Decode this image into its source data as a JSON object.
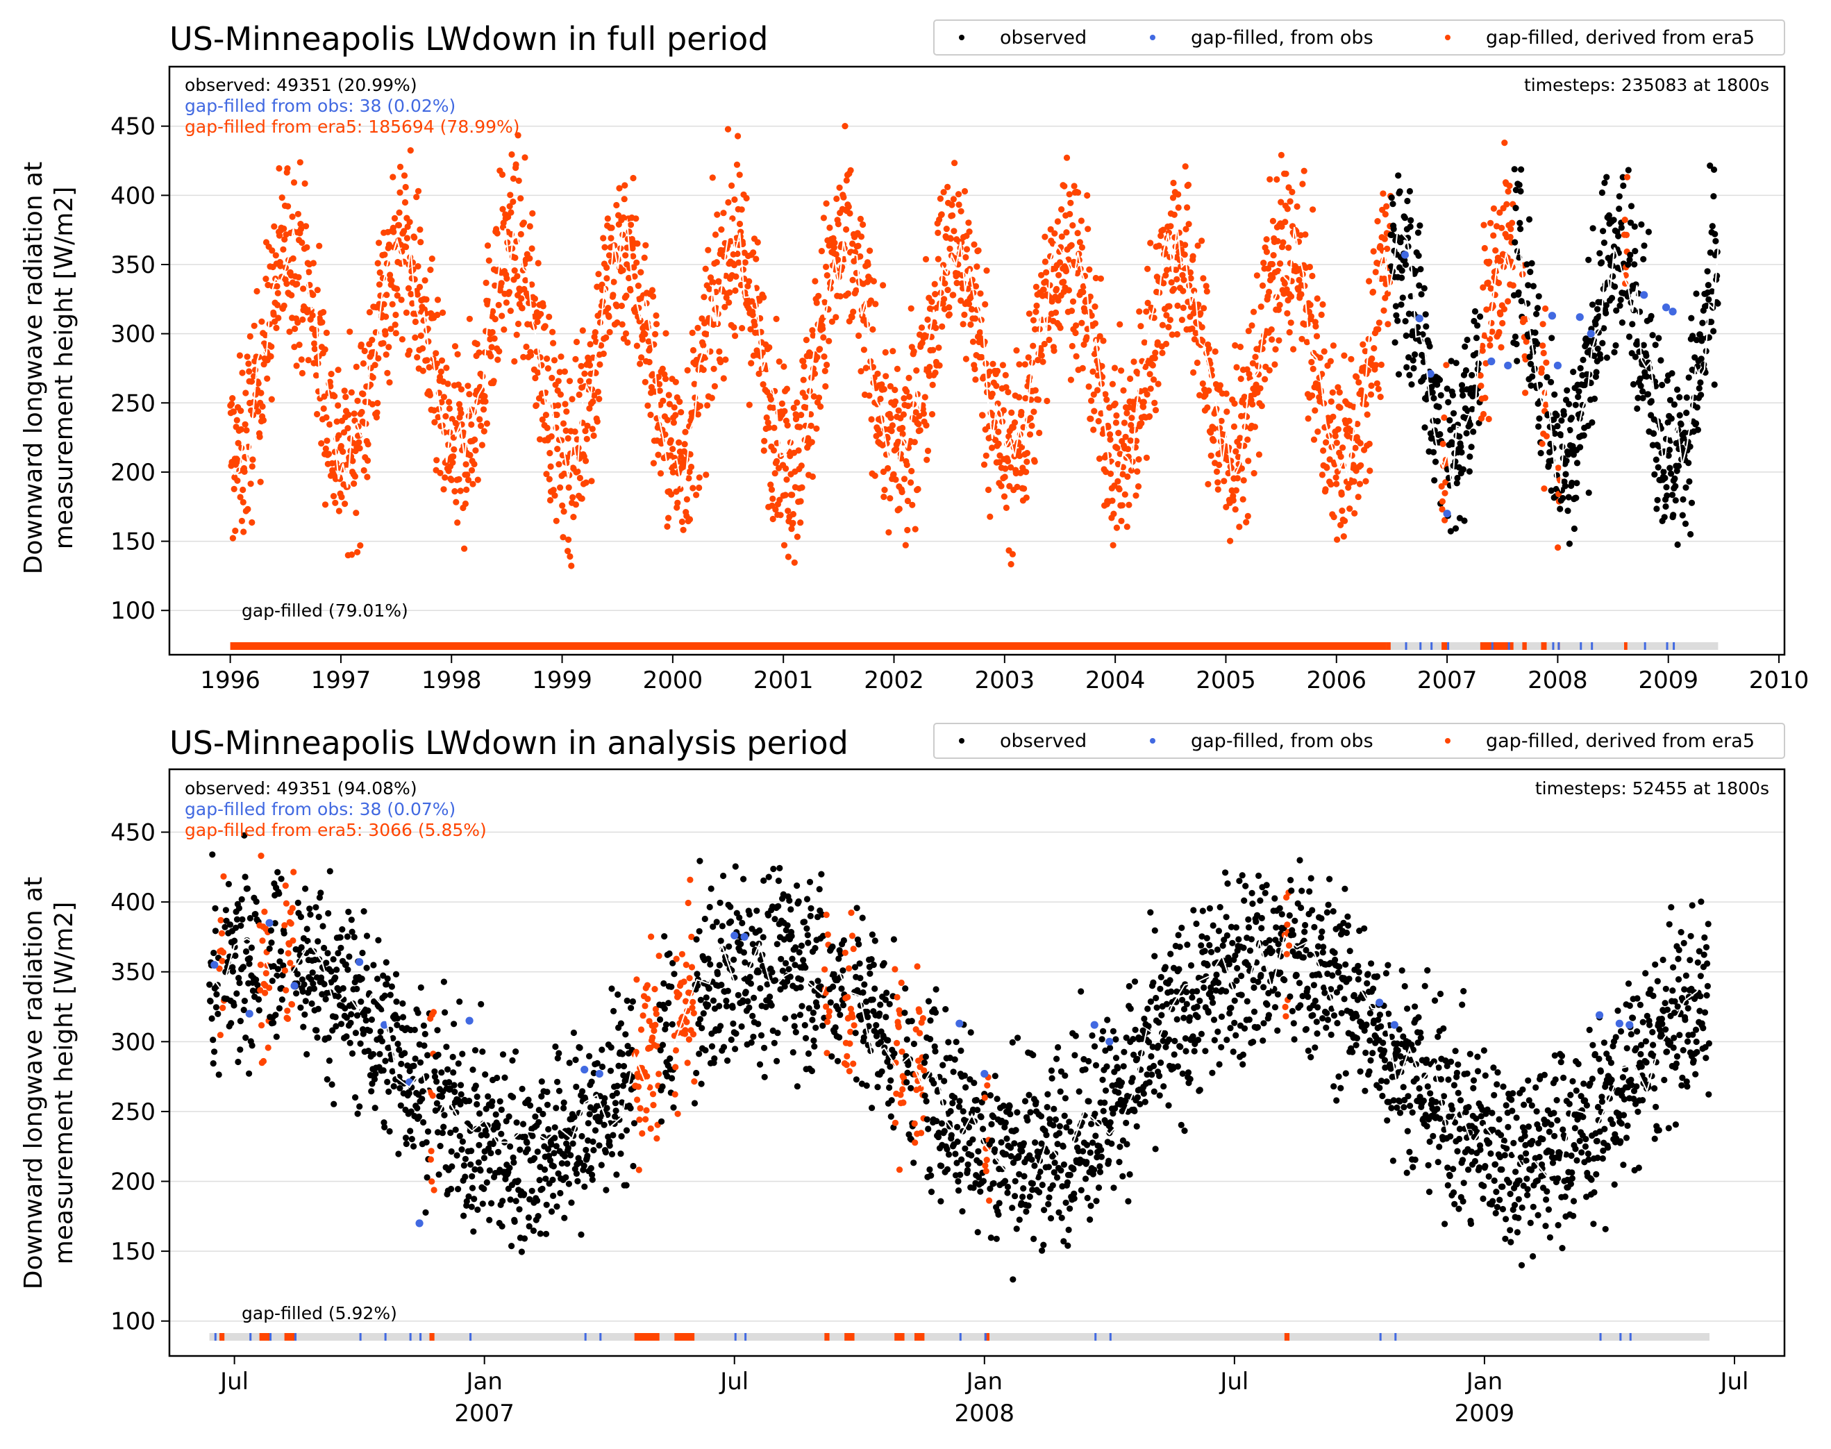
{
  "chart_data": [
    {
      "type": "scatter",
      "title": "US-Minneapolis LWdown in full period",
      "ylabel_line1": "Downward longwave radiation at",
      "ylabel_line2": "measurement height [W/m2]",
      "ylim": [
        68,
        493
      ],
      "xlim": [
        1995.45,
        2010.05
      ],
      "yticks": [
        100,
        150,
        200,
        250,
        300,
        350,
        400,
        450
      ],
      "xticks": [
        1996,
        1997,
        1998,
        1999,
        2000,
        2001,
        2002,
        2003,
        2004,
        2005,
        2006,
        2007,
        2008,
        2009,
        2010
      ],
      "xtick_labels": [
        "1996",
        "1997",
        "1998",
        "1999",
        "2000",
        "2001",
        "2002",
        "2003",
        "2004",
        "2005",
        "2006",
        "2007",
        "2008",
        "2009",
        "2010"
      ],
      "grid": "horizontal",
      "legend_placement": "top-right, above axes",
      "legend": [
        "observed",
        "gap-filled, from obs",
        "gap-filled, derived from era5"
      ],
      "stats": {
        "observed": "observed: 49351 (20.99%)",
        "from_obs": "gap-filled from obs: 38 (0.02%)",
        "from_era5": "gap-filled from era5: 185694 (78.99%)",
        "timesteps": "timesteps: 235083 at 1800s",
        "gap_label": "gap-filled (79.01%)"
      },
      "colors": {
        "observed": "#000000",
        "from_obs": "#4169e1",
        "era5": "#ff4500",
        "mean": "#ffffff",
        "gapbar_bg": "#dcdcdc"
      },
      "x_start": 1996.0,
      "x_end": 2009.45,
      "obs_start": 2006.45,
      "annual_mean": 285,
      "seasonal_amplitude": 75,
      "peak_time": 0.55,
      "era5_bands": [
        [
          2006.45,
          2006.49
        ],
        [
          2006.95,
          2007.0
        ],
        [
          2007.3,
          2007.6
        ],
        [
          2007.68,
          2007.72
        ],
        [
          2007.85,
          2007.9
        ],
        [
          2008.0,
          2008.02
        ],
        [
          2008.6,
          2008.63
        ]
      ],
      "obs_fill_points": [
        [
          2006.62,
          357
        ],
        [
          2006.75,
          311
        ],
        [
          2006.85,
          271
        ],
        [
          2007.0,
          170
        ],
        [
          2007.4,
          280
        ],
        [
          2007.55,
          277
        ],
        [
          2007.95,
          313
        ],
        [
          2008.0,
          277
        ],
        [
          2008.2,
          312
        ],
        [
          2008.3,
          300
        ],
        [
          2008.78,
          328
        ],
        [
          2008.98,
          319
        ],
        [
          2009.04,
          316
        ]
      ]
    },
    {
      "type": "scatter",
      "title": "US-Minneapolis LWdown in analysis period",
      "ylabel_line1": "Downward longwave radiation at",
      "ylabel_line2": "measurement height [W/m2]",
      "ylim": [
        75,
        495
      ],
      "xlim": [
        2006.37,
        2009.6
      ],
      "yticks": [
        100,
        150,
        200,
        250,
        300,
        350,
        400,
        450
      ],
      "xticks": [
        2006.5,
        2007.0,
        2007.5,
        2008.0,
        2008.5,
        2009.0,
        2009.5
      ],
      "xtick_labels": [
        "Jul",
        "Jan",
        "Jul",
        "Jan",
        "Jul",
        "Jan",
        "Jul"
      ],
      "xtick_sublabels": [
        "",
        "2007",
        "",
        "2008",
        "",
        "2009",
        ""
      ],
      "grid": "horizontal",
      "legend_placement": "top-right, above axes",
      "legend": [
        "observed",
        "gap-filled, from obs",
        "gap-filled, derived from era5"
      ],
      "stats": {
        "observed": "observed: 49351 (94.08%)",
        "from_obs": "gap-filled from obs: 38 (0.07%)",
        "from_era5": "gap-filled from era5: 3066 (5.85%)",
        "timesteps": "timesteps: 52455 at 1800s",
        "gap_label": "gap-filled (5.92%)"
      },
      "colors": {
        "observed": "#000000",
        "from_obs": "#4169e1",
        "era5": "#ff4500",
        "mean": "#ffffff",
        "gapbar_bg": "#dcdcdc"
      },
      "x_start": 2006.45,
      "x_end": 2009.45,
      "obs_start": 2006.45,
      "annual_mean": 290,
      "seasonal_amplitude": 70,
      "peak_time": 0.58,
      "era5_bands": [
        [
          2006.47,
          2006.48
        ],
        [
          2006.55,
          2006.57
        ],
        [
          2006.6,
          2006.62
        ],
        [
          2006.89,
          2006.9
        ],
        [
          2007.3,
          2007.35
        ],
        [
          2007.38,
          2007.42
        ],
        [
          2007.68,
          2007.69
        ],
        [
          2007.72,
          2007.74
        ],
        [
          2007.82,
          2007.84
        ],
        [
          2007.86,
          2007.88
        ],
        [
          2008.0,
          2008.01
        ],
        [
          2008.6,
          2008.61
        ]
      ],
      "obs_fill_points": [
        [
          2006.46,
          355
        ],
        [
          2006.53,
          320
        ],
        [
          2006.57,
          385
        ],
        [
          2006.62,
          340
        ],
        [
          2006.75,
          357
        ],
        [
          2006.8,
          312
        ],
        [
          2006.85,
          271
        ],
        [
          2006.87,
          170
        ],
        [
          2006.97,
          315
        ],
        [
          2007.2,
          280
        ],
        [
          2007.23,
          277
        ],
        [
          2007.5,
          376
        ],
        [
          2007.52,
          375
        ],
        [
          2007.95,
          313
        ],
        [
          2008.0,
          277
        ],
        [
          2008.22,
          312
        ],
        [
          2008.25,
          300
        ],
        [
          2008.79,
          328
        ],
        [
          2008.82,
          312
        ],
        [
          2009.23,
          319
        ],
        [
          2009.27,
          313
        ],
        [
          2009.29,
          312
        ]
      ]
    }
  ]
}
